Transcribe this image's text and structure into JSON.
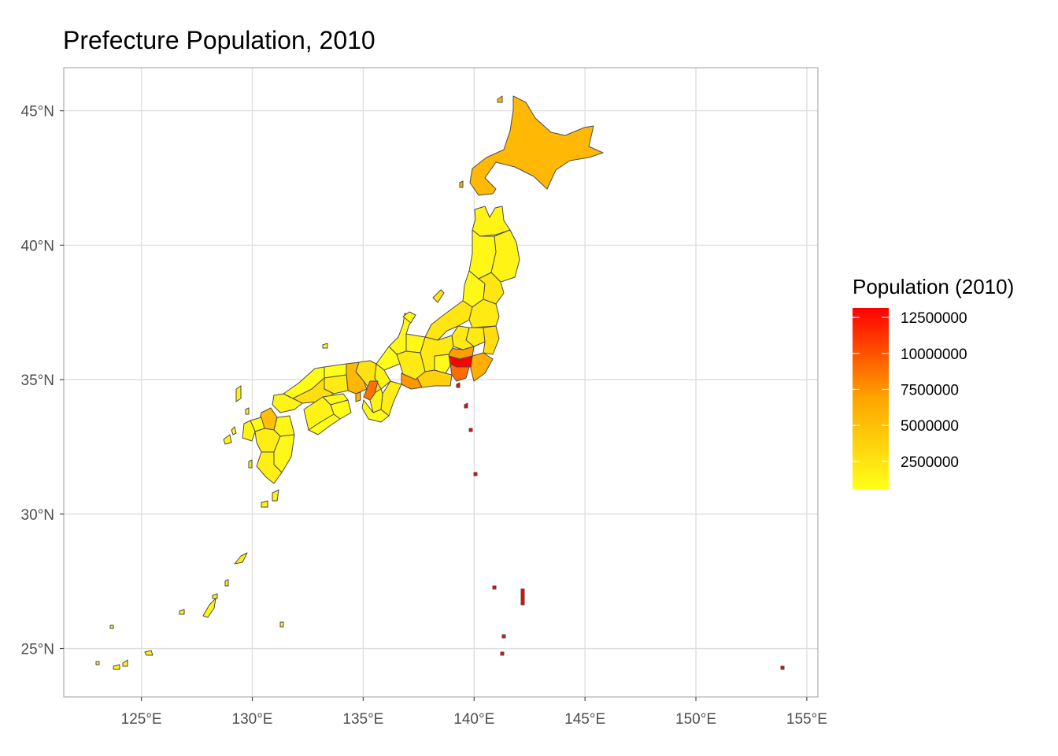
{
  "title": "Prefecture Population, 2010",
  "chart_data": {
    "type": "choropleth",
    "title": "Prefecture Population, 2010",
    "legend_title": "Population (2010)",
    "legend_placement": "right",
    "grid": true,
    "xlim": [
      121.5,
      155.5
    ],
    "ylim": [
      23.2,
      46.6
    ],
    "x_ticks": [
      125,
      130,
      135,
      140,
      145,
      150,
      155
    ],
    "x_tick_labels": [
      "125°E",
      "130°E",
      "135°E",
      "140°E",
      "145°E",
      "150°E",
      "155°E"
    ],
    "y_ticks": [
      25,
      30,
      35,
      40,
      45
    ],
    "y_tick_labels": [
      "25°N",
      "30°N",
      "35°N",
      "40°N",
      "45°N"
    ],
    "color_scale": {
      "low": "#FFFF19",
      "mid": "#FFA500",
      "high": "#FF0000",
      "min": 580000,
      "max": 13160000,
      "breaks": [
        2500000,
        5000000,
        7500000,
        10000000,
        12500000
      ],
      "break_labels": [
        "2500000",
        "5000000",
        "7500000",
        "10000000",
        "12500000"
      ]
    },
    "regions": [
      {
        "key": "hokkaido",
        "value": 5500000
      },
      {
        "key": "aomori",
        "value": 1370000
      },
      {
        "key": "iwate",
        "value": 1330000
      },
      {
        "key": "akita",
        "value": 1090000
      },
      {
        "key": "miyagi",
        "value": 2350000
      },
      {
        "key": "yamagata",
        "value": 1170000
      },
      {
        "key": "fukushima",
        "value": 2030000
      },
      {
        "key": "niigata",
        "value": 2370000
      },
      {
        "key": "ibaraki",
        "value": 2970000
      },
      {
        "key": "tochigi",
        "value": 2010000
      },
      {
        "key": "gunma",
        "value": 2010000
      },
      {
        "key": "saitama",
        "value": 7190000
      },
      {
        "key": "chiba",
        "value": 6220000
      },
      {
        "key": "tokyo",
        "value": 13160000
      },
      {
        "key": "kanagawa",
        "value": 9050000
      },
      {
        "key": "yamanashi",
        "value": 860000
      },
      {
        "key": "nagano",
        "value": 2150000
      },
      {
        "key": "toyama",
        "value": 1090000
      },
      {
        "key": "ishikawa",
        "value": 1170000
      },
      {
        "key": "fukui",
        "value": 810000
      },
      {
        "key": "gifu",
        "value": 2080000
      },
      {
        "key": "shizuoka",
        "value": 3770000
      },
      {
        "key": "aichi",
        "value": 7410000
      },
      {
        "key": "mie",
        "value": 1850000
      },
      {
        "key": "shiga",
        "value": 1410000
      },
      {
        "key": "kyoto",
        "value": 2640000
      },
      {
        "key": "osaka",
        "value": 8870000
      },
      {
        "key": "hyogo",
        "value": 5590000
      },
      {
        "key": "nara",
        "value": 1400000
      },
      {
        "key": "wakayama",
        "value": 1000000
      },
      {
        "key": "tottori",
        "value": 590000
      },
      {
        "key": "shimane",
        "value": 720000
      },
      {
        "key": "okayama",
        "value": 1950000
      },
      {
        "key": "hiroshima",
        "value": 2860000
      },
      {
        "key": "yamaguchi",
        "value": 1450000
      },
      {
        "key": "tokushima",
        "value": 790000
      },
      {
        "key": "kagawa",
        "value": 1000000
      },
      {
        "key": "ehime",
        "value": 1430000
      },
      {
        "key": "kochi",
        "value": 760000
      },
      {
        "key": "fukuoka",
        "value": 5070000
      },
      {
        "key": "saga",
        "value": 850000
      },
      {
        "key": "nagasaki",
        "value": 1430000
      },
      {
        "key": "kumamoto",
        "value": 1820000
      },
      {
        "key": "oita",
        "value": 1200000
      },
      {
        "key": "miyazaki",
        "value": 1140000
      },
      {
        "key": "kagoshima",
        "value": 1710000
      },
      {
        "key": "okinawa",
        "value": 1390000
      }
    ]
  }
}
